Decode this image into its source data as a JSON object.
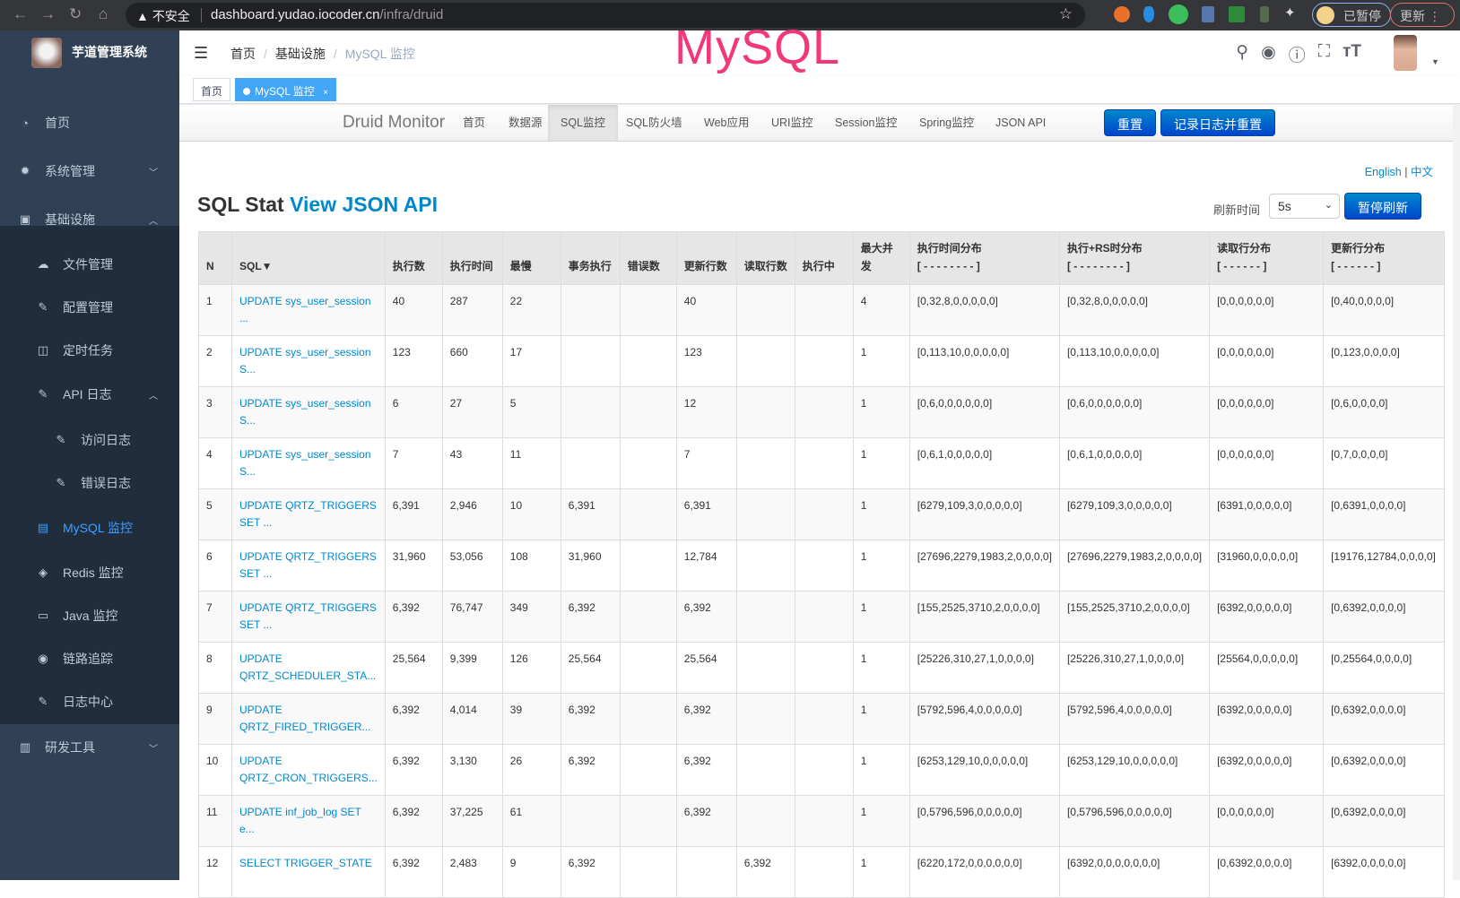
{
  "browser": {
    "security": "不安全",
    "url_host": "dashboard.yudao.iocoder.cn",
    "url_path": "/infra/druid",
    "paused": "已暂停",
    "update": "更新"
  },
  "sidebar": {
    "brand": "芋道管理系统",
    "items": [
      {
        "label": "首页",
        "icon": "dashboard-icon"
      },
      {
        "label": "系统管理",
        "icon": "gear-icon",
        "arrow": "down"
      },
      {
        "label": "基础设施",
        "icon": "monitor-icon",
        "arrow": "up"
      },
      {
        "label": "文件管理",
        "icon": "upload-icon"
      },
      {
        "label": "配置管理",
        "icon": "edit-icon"
      },
      {
        "label": "定时任务",
        "icon": "job-icon"
      },
      {
        "label": "API 日志",
        "icon": "log-icon",
        "arrow": "up"
      },
      {
        "label": "访问日志",
        "icon": "log-icon"
      },
      {
        "label": "错误日志",
        "icon": "log-icon"
      },
      {
        "label": "MySQL 监控",
        "icon": "database-icon",
        "active": true
      },
      {
        "label": "Redis 监控",
        "icon": "redis-icon"
      },
      {
        "label": "Java 监控",
        "icon": "server-icon"
      },
      {
        "label": "链路追踪",
        "icon": "eye-icon"
      },
      {
        "label": "日志中心",
        "icon": "log-icon"
      },
      {
        "label": "研发工具",
        "icon": "toolbox-icon",
        "arrow": "down"
      }
    ]
  },
  "header": {
    "breadcrumb": [
      "首页",
      "基础设施",
      "MySQL 监控"
    ],
    "annotation": "MySQL"
  },
  "tags": [
    {
      "label": "首页"
    },
    {
      "label": "MySQL 监控",
      "active": true
    }
  ],
  "druid": {
    "brand": "Druid Monitor",
    "nav": [
      "首页",
      "数据源",
      "SQL监控",
      "SQL防火墙",
      "Web应用",
      "URI监控",
      "Session监控",
      "Spring监控",
      "JSON API"
    ],
    "active_nav": "SQL监控",
    "reset": "重置",
    "log_reset": "记录日志并重置",
    "lang_en": "English",
    "lang_sep": "|",
    "lang_zh": "中文",
    "title": "SQL Stat",
    "title_link": "View JSON API",
    "refresh_label": "刷新时间",
    "refresh_value": "5s",
    "pause": "暂停刷新",
    "accent": "#0088cc"
  },
  "table": {
    "headers": [
      "N",
      "SQL▼",
      "执行数",
      "执行时间",
      "最慢",
      "事务执行",
      "错误数",
      "更新行数",
      "读取行数",
      "执行中",
      "最大并发",
      "执行时间分布\n[ - - - - - - - - ]",
      "执行+RS时分布\n[ - - - - - - - - ]",
      "读取行分布\n[ - - - - - - ]",
      "更新行分布\n[ - - - - - - ]"
    ],
    "rows": [
      [
        "1",
        "UPDATE sys_user_session ...",
        "40",
        "287",
        "22",
        "",
        "",
        "40",
        "",
        "",
        "4",
        "[0,32,8,0,0,0,0,0]",
        "[0,32,8,0,0,0,0,0]",
        "[0,0,0,0,0,0]",
        "[0,40,0,0,0,0]"
      ],
      [
        "2",
        "UPDATE sys_user_session S...",
        "123",
        "660",
        "17",
        "",
        "",
        "123",
        "",
        "",
        "1",
        "[0,113,10,0,0,0,0,0]",
        "[0,113,10,0,0,0,0,0]",
        "[0,0,0,0,0,0]",
        "[0,123,0,0,0,0]"
      ],
      [
        "3",
        "UPDATE sys_user_session S...",
        "6",
        "27",
        "5",
        "",
        "",
        "12",
        "",
        "",
        "1",
        "[0,6,0,0,0,0,0,0]",
        "[0,6,0,0,0,0,0,0]",
        "[0,0,0,0,0,0]",
        "[0,6,0,0,0,0]"
      ],
      [
        "4",
        "UPDATE sys_user_session S...",
        "7",
        "43",
        "11",
        "",
        "",
        "7",
        "",
        "",
        "1",
        "[0,6,1,0,0,0,0,0]",
        "[0,6,1,0,0,0,0,0]",
        "[0,0,0,0,0,0]",
        "[0,7,0,0,0,0]"
      ],
      [
        "5",
        "UPDATE QRTZ_TRIGGERS SET ...",
        "6,391",
        "2,946",
        "10",
        "6,391",
        "",
        "6,391",
        "",
        "",
        "1",
        "[6279,109,3,0,0,0,0,0]",
        "[6279,109,3,0,0,0,0,0]",
        "[6391,0,0,0,0,0]",
        "[0,6391,0,0,0,0]"
      ],
      [
        "6",
        "UPDATE QRTZ_TRIGGERS SET ...",
        "31,960",
        "53,056",
        "108",
        "31,960",
        "",
        "12,784",
        "",
        "",
        "1",
        "[27696,2279,1983,2,0,0,0,0]",
        "[27696,2279,1983,2,0,0,0,0]",
        "[31960,0,0,0,0,0]",
        "[19176,12784,0,0,0,0]"
      ],
      [
        "7",
        "UPDATE QRTZ_TRIGGERS SET ...",
        "6,392",
        "76,747",
        "349",
        "6,392",
        "",
        "6,392",
        "",
        "",
        "1",
        "[155,2525,3710,2,0,0,0,0]",
        "[155,2525,3710,2,0,0,0,0]",
        "[6392,0,0,0,0,0]",
        "[0,6392,0,0,0,0]"
      ],
      [
        "8",
        "UPDATE QRTZ_SCHEDULER_STA...",
        "25,564",
        "9,399",
        "126",
        "25,564",
        "",
        "25,564",
        "",
        "",
        "1",
        "[25226,310,27,1,0,0,0,0]",
        "[25226,310,27,1,0,0,0,0]",
        "[25564,0,0,0,0,0]",
        "[0,25564,0,0,0,0]"
      ],
      [
        "9",
        "UPDATE QRTZ_FIRED_TRIGGER...",
        "6,392",
        "4,014",
        "39",
        "6,392",
        "",
        "6,392",
        "",
        "",
        "1",
        "[5792,596,4,0,0,0,0,0]",
        "[5792,596,4,0,0,0,0,0]",
        "[6392,0,0,0,0,0]",
        "[0,6392,0,0,0,0]"
      ],
      [
        "10",
        "UPDATE QRTZ_CRON_TRIGGERS...",
        "6,392",
        "3,130",
        "26",
        "6,392",
        "",
        "6,392",
        "",
        "",
        "1",
        "[6253,129,10,0,0,0,0,0]",
        "[6253,129,10,0,0,0,0,0]",
        "[6392,0,0,0,0,0]",
        "[0,6392,0,0,0,0]"
      ],
      [
        "11",
        "UPDATE inf_job_log SET e...",
        "6,392",
        "37,225",
        "61",
        "",
        "",
        "6,392",
        "",
        "",
        "1",
        "[0,5796,596,0,0,0,0,0]",
        "[0,5796,596,0,0,0,0,0]",
        "[0,0,0,0,0,0]",
        "[0,6392,0,0,0,0]"
      ],
      [
        "12",
        "SELECT TRIGGER_STATE",
        "6,392",
        "2,483",
        "9",
        "6,392",
        "",
        "",
        "6,392",
        "",
        "1",
        "[6220,172,0,0,0,0,0,0]",
        "[6392,0,0,0,0,0,0,0]",
        "[0,6392,0,0,0,0]",
        "[6392,0,0,0,0,0]"
      ]
    ]
  }
}
